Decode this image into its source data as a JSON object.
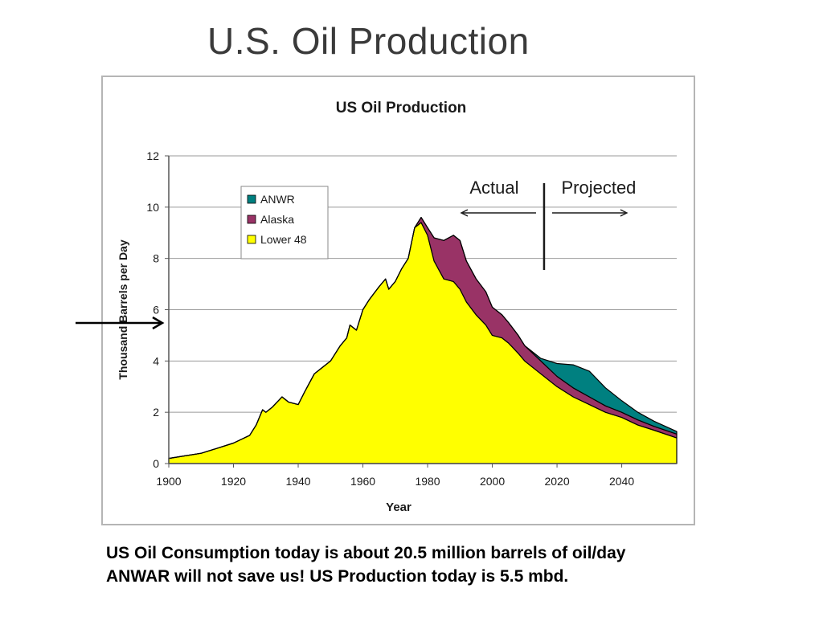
{
  "slide": {
    "title": "U.S. Oil Production",
    "caption_line1": "US Oil Consumption today is about 20.5 million barrels of oil/day",
    "caption_line2": "ANWAR will not save us!  US Production today is 5.5 mbd."
  },
  "chart_data": {
    "type": "area",
    "stacked": true,
    "title": "US Oil Production",
    "xlabel": "Year",
    "ylabel": "Thousand Barrels per Day",
    "xlim": [
      1900,
      2057
    ],
    "ylim": [
      0,
      12
    ],
    "xticks": [
      1900,
      1920,
      1940,
      1960,
      1980,
      2000,
      2020,
      2040
    ],
    "yticks": [
      0,
      2,
      4,
      6,
      8,
      10,
      12
    ],
    "grid": "horizontal",
    "legend_position": "top-left",
    "annotations": {
      "left": "Actual",
      "right": "Projected",
      "divider_year": 2016
    },
    "x": [
      1900,
      1905,
      1910,
      1915,
      1920,
      1925,
      1927,
      1929,
      1930,
      1932,
      1935,
      1937,
      1940,
      1942,
      1945,
      1947,
      1950,
      1953,
      1955,
      1956,
      1958,
      1960,
      1962,
      1965,
      1967,
      1968,
      1970,
      1972,
      1974,
      1976,
      1978,
      1980,
      1982,
      1985,
      1988,
      1990,
      1992,
      1995,
      1998,
      2000,
      2003,
      2005,
      2008,
      2010,
      2015,
      2020,
      2025,
      2030,
      2035,
      2040,
      2045,
      2050,
      2057
    ],
    "series": [
      {
        "name": "Lower 48",
        "color": "#ffff00",
        "values": [
          0.2,
          0.3,
          0.4,
          0.6,
          0.8,
          1.1,
          1.5,
          2.1,
          2.0,
          2.2,
          2.6,
          2.4,
          2.3,
          2.8,
          3.5,
          3.7,
          4.0,
          4.6,
          4.9,
          5.4,
          5.2,
          6.0,
          6.4,
          6.9,
          7.2,
          6.8,
          7.1,
          7.6,
          8.0,
          9.2,
          9.4,
          8.9,
          7.9,
          7.2,
          7.1,
          6.8,
          6.3,
          5.8,
          5.4,
          5.0,
          4.9,
          4.7,
          4.3,
          4.0,
          3.5,
          3.0,
          2.6,
          2.3,
          2.0,
          1.8,
          1.5,
          1.3,
          1.0
        ]
      },
      {
        "name": "Alaska",
        "color": "#993366",
        "values": [
          0,
          0,
          0,
          0,
          0,
          0,
          0,
          0,
          0,
          0,
          0,
          0,
          0,
          0,
          0,
          0,
          0,
          0,
          0,
          0,
          0,
          0,
          0,
          0,
          0,
          0,
          0,
          0,
          0,
          0,
          0.2,
          0.3,
          0.9,
          1.5,
          1.8,
          1.9,
          1.6,
          1.4,
          1.3,
          1.1,
          0.9,
          0.8,
          0.7,
          0.6,
          0.5,
          0.4,
          0.35,
          0.3,
          0.25,
          0.2,
          0.2,
          0.15,
          0.15
        ]
      },
      {
        "name": "ANWR",
        "color": "#008080",
        "values": [
          0,
          0,
          0,
          0,
          0,
          0,
          0,
          0,
          0,
          0,
          0,
          0,
          0,
          0,
          0,
          0,
          0,
          0,
          0,
          0,
          0,
          0,
          0,
          0,
          0,
          0,
          0,
          0,
          0,
          0,
          0,
          0,
          0,
          0,
          0,
          0,
          0,
          0,
          0,
          0,
          0,
          0,
          0,
          0,
          0.1,
          0.5,
          0.9,
          1.0,
          0.7,
          0.45,
          0.3,
          0.2,
          0.1
        ]
      }
    ]
  },
  "pointer": {
    "direction": "right",
    "target_value": 5.5
  }
}
